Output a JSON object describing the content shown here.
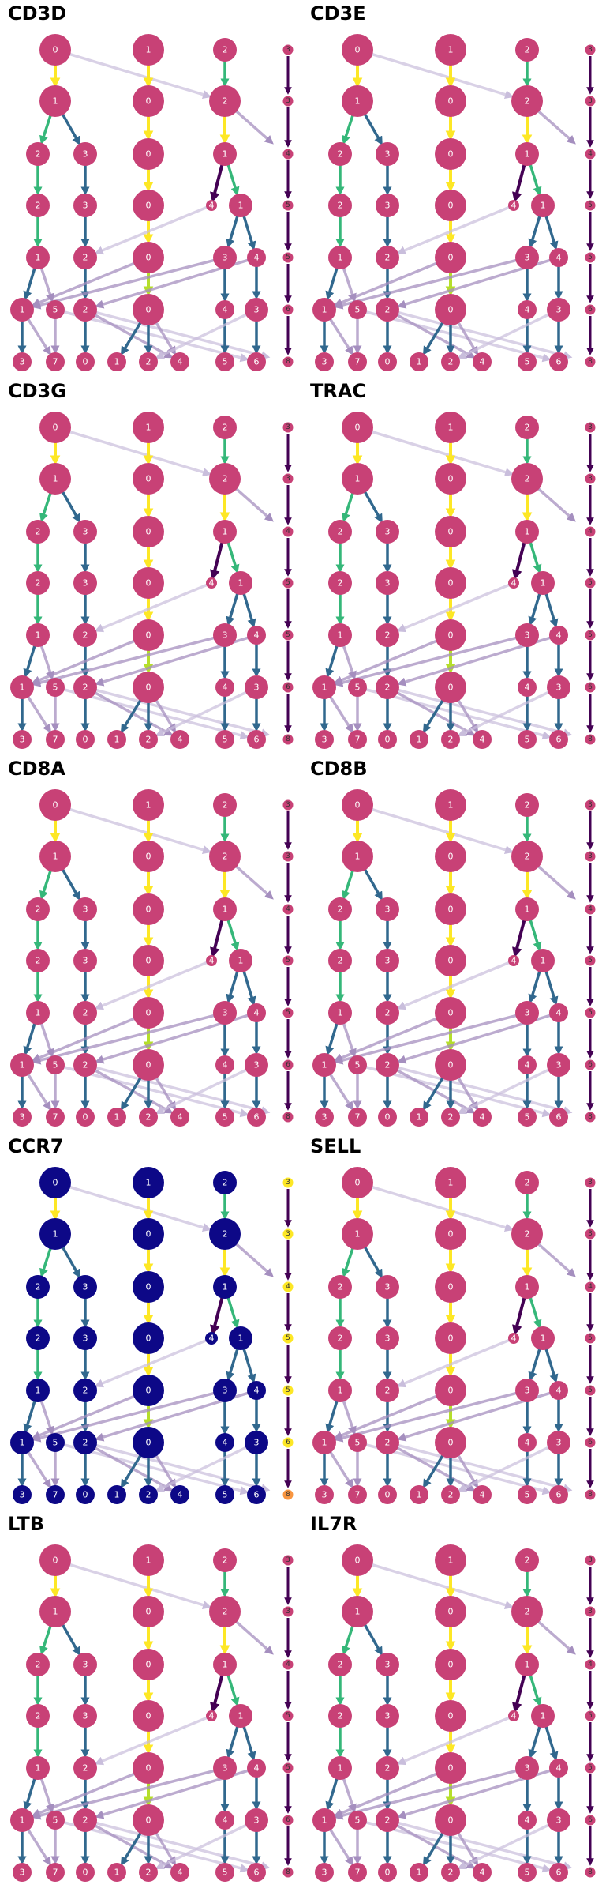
{
  "panels": [
    {
      "title": "CD3D",
      "variant": "high"
    },
    {
      "title": "CD3E",
      "variant": "high"
    },
    {
      "title": "CD3G",
      "variant": "high"
    },
    {
      "title": "TRAC",
      "variant": "high"
    },
    {
      "title": "CD8A",
      "variant": "high"
    },
    {
      "title": "CD8B",
      "variant": "high"
    },
    {
      "title": "CCR7",
      "variant": "low"
    },
    {
      "title": "SELL",
      "variant": "high"
    },
    {
      "title": "LTB",
      "variant": "high"
    },
    {
      "title": "IL7R",
      "variant": "high"
    }
  ],
  "tree": {
    "levels": [
      [
        {
          "id": "L0_0",
          "label": "0",
          "size": "large"
        },
        {
          "id": "L0_1",
          "label": "1",
          "size": "large"
        },
        {
          "id": "L0_2",
          "label": "2",
          "size": "medium"
        }
      ],
      [
        {
          "id": "L1_1",
          "label": "1",
          "size": "large"
        },
        {
          "id": "L1_0",
          "label": "0",
          "size": "large"
        },
        {
          "id": "L1_2",
          "label": "2",
          "size": "large"
        }
      ],
      [
        {
          "id": "L2_2",
          "label": "2",
          "size": "medium"
        },
        {
          "id": "L2_3",
          "label": "3",
          "size": "medium"
        },
        {
          "id": "L2_0",
          "label": "0",
          "size": "large"
        },
        {
          "id": "L2_1",
          "label": "1",
          "size": "medium"
        }
      ],
      [
        {
          "id": "L3_2",
          "label": "2",
          "size": "medium"
        },
        {
          "id": "L3_3",
          "label": "3",
          "size": "medium"
        },
        {
          "id": "L3_0",
          "label": "0",
          "size": "large"
        },
        {
          "id": "L3_4",
          "label": "4",
          "size": "tiny"
        },
        {
          "id": "L3_1",
          "label": "1",
          "size": "medium"
        }
      ],
      [
        {
          "id": "L4_1",
          "label": "1",
          "size": "medium"
        },
        {
          "id": "L4_2",
          "label": "2",
          "size": "medium"
        },
        {
          "id": "L4_0",
          "label": "0",
          "size": "large"
        },
        {
          "id": "L4_3",
          "label": "3",
          "size": "medium"
        },
        {
          "id": "L4_4",
          "label": "4",
          "size": "small"
        }
      ],
      [
        {
          "id": "L5_1",
          "label": "1",
          "size": "medium"
        },
        {
          "id": "L5_5",
          "label": "5",
          "size": "small"
        },
        {
          "id": "L5_2",
          "label": "2",
          "size": "medium"
        },
        {
          "id": "L5_0",
          "label": "0",
          "size": "large"
        },
        {
          "id": "L5_4",
          "label": "4",
          "size": "small"
        },
        {
          "id": "L5_3",
          "label": "3",
          "size": "medium"
        }
      ],
      [
        {
          "id": "L6_3",
          "label": "3",
          "size": "small"
        },
        {
          "id": "L6_7",
          "label": "7",
          "size": "small"
        },
        {
          "id": "L6_0",
          "label": "0",
          "size": "small"
        },
        {
          "id": "L6_1",
          "label": "1",
          "size": "small"
        },
        {
          "id": "L6_2",
          "label": "2",
          "size": "small"
        },
        {
          "id": "L6_4",
          "label": "4",
          "size": "small"
        },
        {
          "id": "L6_5",
          "label": "5",
          "size": "small"
        },
        {
          "id": "L6_6",
          "label": "6",
          "size": "small"
        }
      ]
    ],
    "resolution_labels": [
      "3",
      "3",
      "4",
      "5",
      "5",
      "6",
      "8"
    ],
    "edges": [
      {
        "from": "L0_0",
        "to": "L1_1",
        "weight": "high"
      },
      {
        "from": "L0_0",
        "to": "L1_2",
        "weight": "faint"
      },
      {
        "from": "L0_1",
        "to": "L1_0",
        "weight": "high"
      },
      {
        "from": "L0_2",
        "to": "L1_2",
        "weight": "strong"
      },
      {
        "from": "L1_1",
        "to": "L2_2",
        "weight": "strong"
      },
      {
        "from": "L1_1",
        "to": "L2_3",
        "weight": "mid"
      },
      {
        "from": "L1_0",
        "to": "L2_0",
        "weight": "high"
      },
      {
        "from": "L1_2",
        "to": "L2_1",
        "weight": "high"
      },
      {
        "from": "L1_2",
        "to": "L2_1_right",
        "weight": "light"
      },
      {
        "from": "L2_2",
        "to": "L3_2",
        "weight": "strong"
      },
      {
        "from": "L2_3",
        "to": "L3_3",
        "weight": "mid"
      },
      {
        "from": "L2_0",
        "to": "L3_0",
        "weight": "high"
      },
      {
        "from": "L2_1",
        "to": "L3_4",
        "weight": "dark"
      },
      {
        "from": "L2_1",
        "to": "L3_1",
        "weight": "strong"
      },
      {
        "from": "L3_2",
        "to": "L4_1",
        "weight": "strong"
      },
      {
        "from": "L3_3",
        "to": "L4_2",
        "weight": "mid"
      },
      {
        "from": "L3_0",
        "to": "L4_0",
        "weight": "high"
      },
      {
        "from": "L3_4",
        "to": "L4_2",
        "weight": "faint"
      },
      {
        "from": "L3_1",
        "to": "L4_3",
        "weight": "mid"
      },
      {
        "from": "L3_1",
        "to": "L4_4",
        "weight": "mid"
      },
      {
        "from": "L4_1",
        "to": "L5_1",
        "weight": "mid"
      },
      {
        "from": "L4_1",
        "to": "L5_5",
        "weight": "light"
      },
      {
        "from": "L4_2",
        "to": "L5_2",
        "weight": "mid"
      },
      {
        "from": "L4_0",
        "to": "L5_0",
        "weight": "lime"
      },
      {
        "from": "L4_3",
        "to": "L5_4",
        "weight": "mid"
      },
      {
        "from": "L4_3",
        "to": "L5_1",
        "weight": "light"
      },
      {
        "from": "L4_4",
        "to": "L5_3",
        "weight": "mid"
      },
      {
        "from": "L4_4",
        "to": "L5_2",
        "weight": "light"
      },
      {
        "from": "L4_0",
        "to": "L5_1",
        "weight": "light"
      },
      {
        "from": "L5_1",
        "to": "L6_3",
        "weight": "mid"
      },
      {
        "from": "L5_1",
        "to": "L6_7",
        "weight": "light"
      },
      {
        "from": "L5_5",
        "to": "L6_7",
        "weight": "light"
      },
      {
        "from": "L5_5",
        "to": "L6_6",
        "weight": "faint"
      },
      {
        "from": "L5_2",
        "to": "L6_0",
        "weight": "mid"
      },
      {
        "from": "L5_2",
        "to": "L6_4",
        "weight": "light"
      },
      {
        "from": "L5_2",
        "to": "L6_8",
        "weight": "faint"
      },
      {
        "from": "L5_0",
        "to": "L6_1",
        "weight": "mid"
      },
      {
        "from": "L5_0",
        "to": "L6_2",
        "weight": "mid"
      },
      {
        "from": "L5_0",
        "to": "L6_4",
        "weight": "light"
      },
      {
        "from": "L5_4",
        "to": "L6_5",
        "weight": "mid"
      },
      {
        "from": "L5_3",
        "to": "L6_6",
        "weight": "mid"
      },
      {
        "from": "L5_3",
        "to": "L6_2",
        "weight": "faint"
      }
    ]
  },
  "colors": {
    "node_high": "#c84176",
    "node_low": "#0d0887",
    "edge_high": "#fde725",
    "edge_lime": "#b5de2b",
    "edge_strong": "#35b779",
    "edge_mid": "#31688e",
    "edge_dark": "#440154",
    "edge_light": "#a58fbf",
    "edge_faint": "#c9bedc",
    "res_high": "#c84176",
    "res_low": "#fde725",
    "res_low_last": "#f89540",
    "res_arrow": "#440154"
  }
}
